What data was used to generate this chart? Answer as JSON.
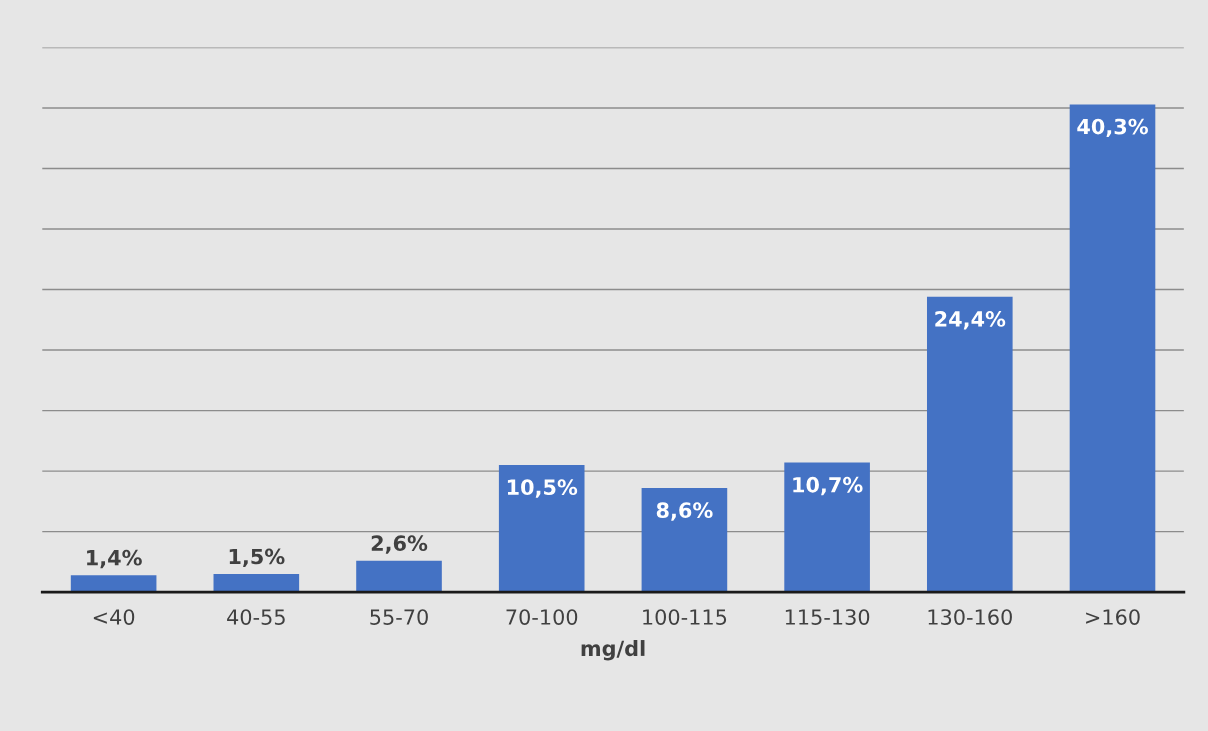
{
  "chart_data": {
    "type": "bar",
    "xlabel": "mg/dl",
    "categories": [
      "<40",
      "40-55",
      "55-70",
      "70-100",
      "100-115",
      "115-130",
      "130-160",
      ">160"
    ],
    "values": [
      1.4,
      1.5,
      2.6,
      10.5,
      8.6,
      10.7,
      24.4,
      40.3
    ],
    "value_labels": [
      "1,4%",
      "1,5%",
      "2,6%",
      "10,5%",
      "8,6%",
      "10,7%",
      "24,4%",
      "40,3%"
    ],
    "color": "#4472c4",
    "ylim": [
      0,
      45
    ],
    "yticks": [
      {
        "value": 0,
        "label": null
      },
      {
        "value": 5,
        "label": null
      },
      {
        "value": 10,
        "label": null
      },
      {
        "value": 15,
        "label": null
      },
      {
        "value": 20,
        "label": null
      },
      {
        "value": 25,
        "label": null
      },
      {
        "value": 30,
        "label": null
      },
      {
        "value": 35,
        "label": null
      },
      {
        "value": 40,
        "label": null
      },
      {
        "value": 45,
        "label": null
      }
    ],
    "tick_labels": "x",
    "grid": "y"
  }
}
